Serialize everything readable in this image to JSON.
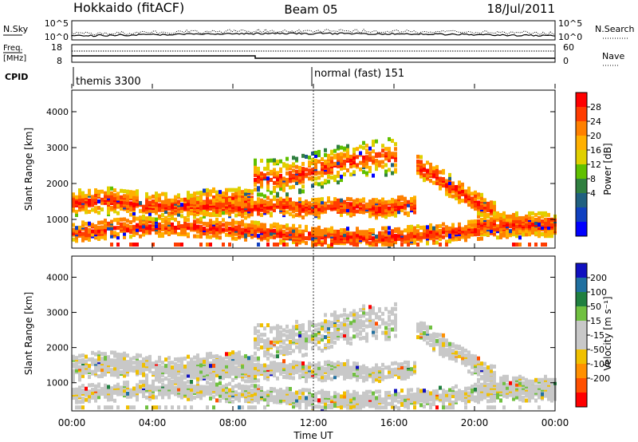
{
  "header": {
    "title_left": "Hokkaido (fitACF)",
    "title_center": "Beam 05",
    "title_right": "18/Jul/2011"
  },
  "summary": {
    "nsky_label": "N.Sky",
    "nsky_ticks": [
      "10^5",
      "10^0"
    ],
    "nsky_ticks_right": [
      "10^5",
      "10^0"
    ],
    "nsearch_label": "N.Search",
    "freq_label_1": "Freq.",
    "freq_label_2": "[MHz]",
    "freq_ticks": [
      "18",
      "8"
    ],
    "nave_ticks": [
      "60",
      "0"
    ],
    "nave_label": "Nave",
    "cpid_label": "CPID",
    "cpid_modes": [
      {
        "label": "themis 3300",
        "start_hour": 0
      },
      {
        "label": "normal (fast) 151",
        "start_hour": 12
      }
    ]
  },
  "chart_data": [
    {
      "type": "heatmap",
      "name": "power",
      "ylabel": "Slant Range [km]",
      "yticks": [
        "1000",
        "2000",
        "3000",
        "4000"
      ],
      "ylim": [
        200,
        4600
      ],
      "xlim_hours": [
        0,
        24
      ],
      "colorbar": {
        "label": "Power [dB]",
        "ticks": [
          "28",
          "24",
          "20",
          "16",
          "12",
          "8",
          "4"
        ],
        "colors": [
          "#ff0000",
          "#ff3c00",
          "#ff8000",
          "#ffb000",
          "#e0d000",
          "#60c000",
          "#308040",
          "#206080",
          "#1040c0",
          "#0000ff"
        ]
      }
    },
    {
      "type": "heatmap",
      "name": "velocity",
      "ylabel": "Slant Range [km]",
      "yticks": [
        "1000",
        "2000",
        "3000",
        "4000"
      ],
      "ylim": [
        200,
        4600
      ],
      "xlim_hours": [
        0,
        24
      ],
      "colorbar": {
        "label": "Velocity [m s⁻¹]",
        "ticks": [
          "200",
          "100",
          "50",
          "15",
          "-15",
          "-50",
          "-100",
          "-200"
        ],
        "colors": [
          "#1010c0",
          "#2070a0",
          "#208040",
          "#70c040",
          "#c8c8c8",
          "#c8c8c8",
          "#f0c000",
          "#ff9000",
          "#ff5000",
          "#ff0000"
        ]
      }
    }
  ],
  "xaxis": {
    "ticks": [
      "00:00",
      "04:00",
      "08:00",
      "12:00",
      "16:00",
      "20:00",
      "00:00"
    ],
    "label": "Time UT"
  }
}
